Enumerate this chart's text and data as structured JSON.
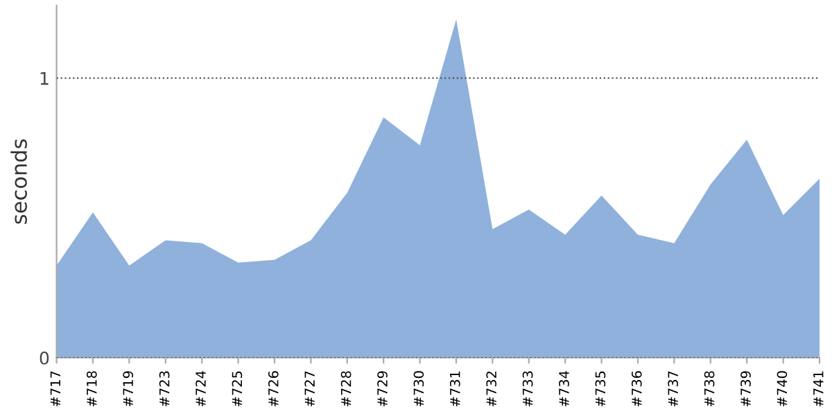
{
  "chart_data": {
    "type": "area",
    "ylabel": "seconds",
    "categories": [
      "#717",
      "#718",
      "#719",
      "#723",
      "#724",
      "#725",
      "#726",
      "#727",
      "#728",
      "#729",
      "#730",
      "#731",
      "#732",
      "#733",
      "#734",
      "#735",
      "#736",
      "#737",
      "#738",
      "#739",
      "#740",
      "#741"
    ],
    "values": [
      0.33,
      0.52,
      0.33,
      0.42,
      0.41,
      0.34,
      0.35,
      0.42,
      0.59,
      0.86,
      0.76,
      1.21,
      0.46,
      0.53,
      0.44,
      0.58,
      0.44,
      0.41,
      0.62,
      0.78,
      0.51,
      0.64
    ],
    "color": "#8fb1dc",
    "ylim": [
      0,
      1.26
    ],
    "yticks": [
      0,
      1
    ],
    "grid": "y"
  }
}
